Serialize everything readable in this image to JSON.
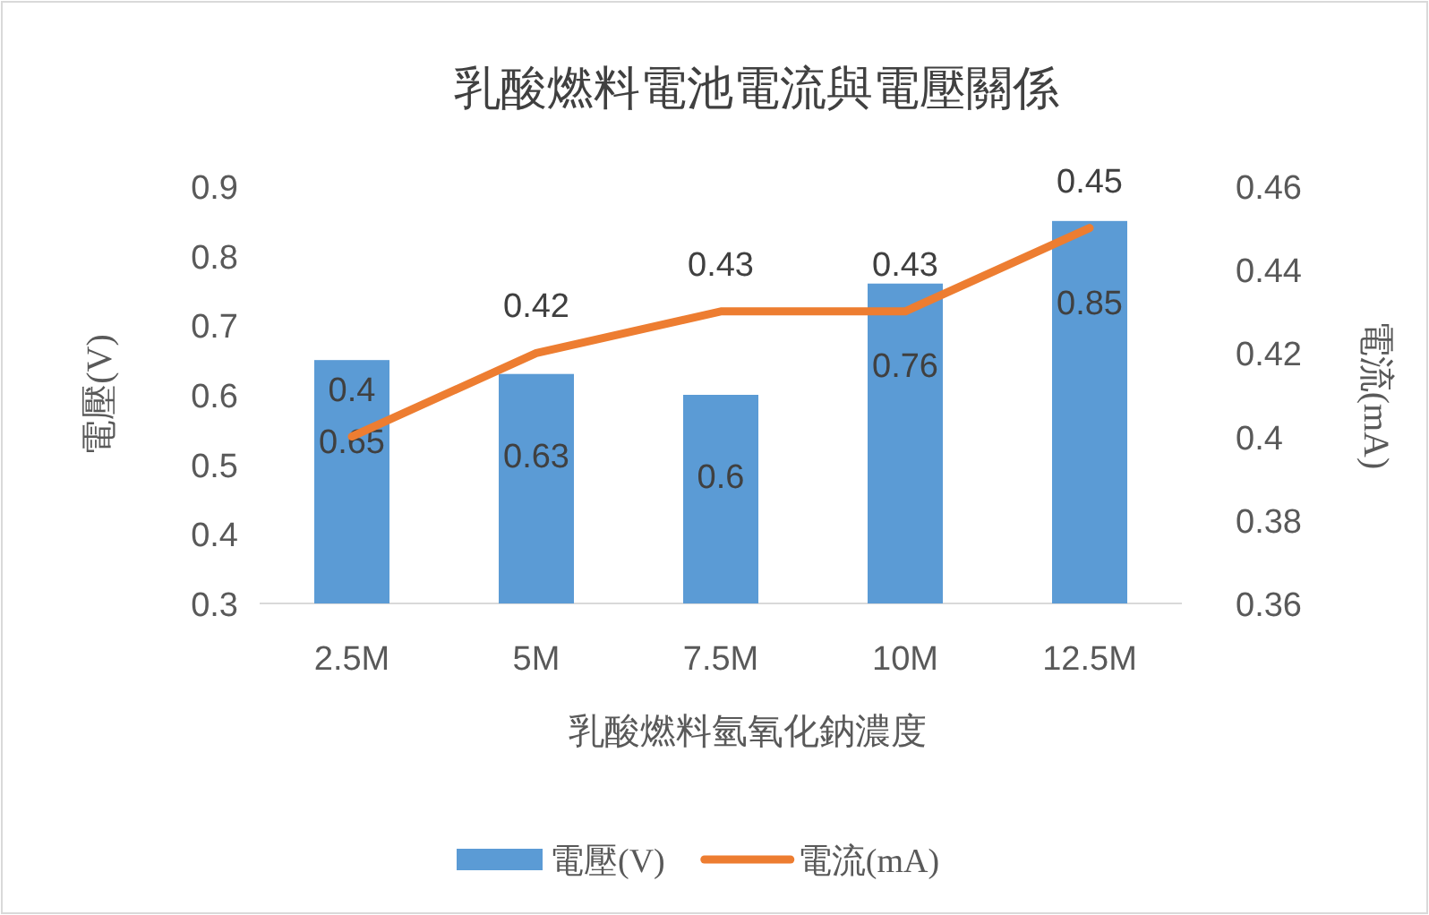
{
  "chart_data": {
    "type": "bar",
    "title": "乳酸燃料電池電流與電壓關係",
    "xlabel": "乳酸燃料氫氧化鈉濃度",
    "ylabel": "電壓(V)",
    "y2label": "電流(mA)",
    "categories": [
      "2.5M",
      "5M",
      "7.5M",
      "10M",
      "12.5M"
    ],
    "series": [
      {
        "name": "電壓(V)",
        "color": "#5b9bd5",
        "values": [
          0.65,
          0.63,
          0.6,
          0.76,
          0.85
        ]
      },
      {
        "name": "電流(mA)",
        "type": "line",
        "axis": "y2",
        "color": "#ed7d31",
        "values": [
          0.4,
          0.42,
          0.43,
          0.43,
          0.45
        ]
      }
    ],
    "ylim": [
      0.3,
      0.9
    ],
    "yticks": [
      0.3,
      0.4,
      0.5,
      0.6,
      0.7,
      0.8,
      0.9
    ],
    "y2lim": [
      0.36,
      0.46
    ],
    "y2ticks": [
      0.36,
      0.38,
      0.4,
      0.42,
      0.44,
      0.46
    ],
    "data_labels": true,
    "legend": "bottom",
    "marker": "none"
  }
}
